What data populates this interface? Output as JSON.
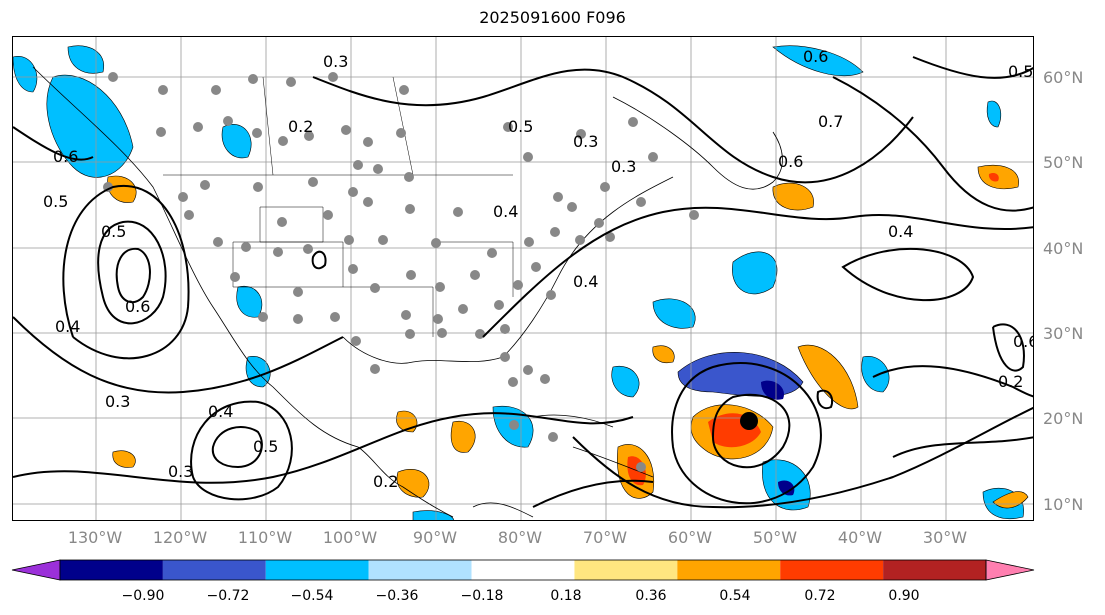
{
  "title": "2025091600 F096",
  "lat_labels": [
    "60°N",
    "50°N",
    "40°N",
    "30°N",
    "20°N",
    "10°N"
  ],
  "lon_labels": [
    "130°W",
    "120°W",
    "110°W",
    "100°W",
    "90°W",
    "80°W",
    "70°W",
    "60°W",
    "50°W",
    "40°W",
    "30°W"
  ],
  "colorbar": {
    "tick_labels": [
      "−0.90",
      "−0.72",
      "−0.54",
      "−0.36",
      "−0.18",
      "0.18",
      "0.36",
      "0.54",
      "0.72",
      "0.90"
    ],
    "colors": [
      "#9b30d9",
      "#00008b",
      "#3a56cc",
      "#00bfff",
      "#b0e2ff",
      "#ffffff",
      "#ffe680",
      "#ffa500",
      "#ff3c00",
      "#b22222",
      "#ff7fb0"
    ]
  },
  "contour_labels": [
    "0.5",
    "0.6",
    "0.5",
    "0.4",
    "0.2",
    "0.3",
    "0.4",
    "0.5",
    "0.6",
    "0.5",
    "0.3",
    "0.3",
    "0.4",
    "0.3",
    "0.2",
    "0.4",
    "0.7",
    "0.6",
    "0.4",
    "0.5",
    "0.2",
    "0.6",
    "0.3",
    "0.6"
  ],
  "storm_marker": "tropical-cyclone-center"
}
